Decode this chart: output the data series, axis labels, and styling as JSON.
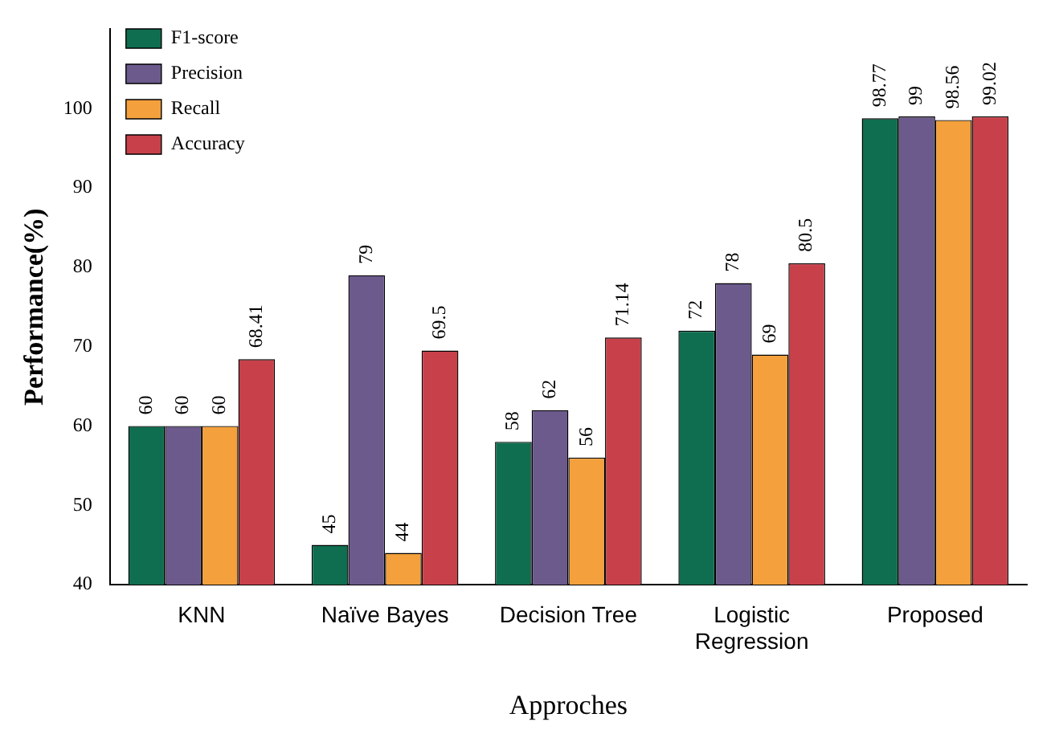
{
  "chart_data": {
    "type": "bar",
    "xlabel": "Approches",
    "ylabel": "Performance(%)",
    "categories": [
      "KNN",
      "Naïve Bayes",
      "Decision Tree",
      "Logistic Regression",
      "Proposed"
    ],
    "series": [
      {
        "name": "F1-score",
        "color": "#0f6e50",
        "values": [
          60,
          45,
          58,
          72,
          98.77
        ]
      },
      {
        "name": "Precision",
        "color": "#6c5a8c",
        "values": [
          60,
          79,
          62,
          78,
          99
        ]
      },
      {
        "name": "Recall",
        "color": "#f4a03c",
        "values": [
          60,
          44,
          56,
          69,
          98.56
        ]
      },
      {
        "name": "Accuracy",
        "color": "#c8414a",
        "values": [
          68.41,
          69.5,
          71.14,
          80.5,
          99.02
        ]
      }
    ],
    "ylim": [
      40,
      110
    ],
    "yticks": [
      40,
      50,
      60,
      70,
      80,
      90,
      100
    ],
    "grid": false,
    "legend": "top left",
    "data_labels": true
  }
}
